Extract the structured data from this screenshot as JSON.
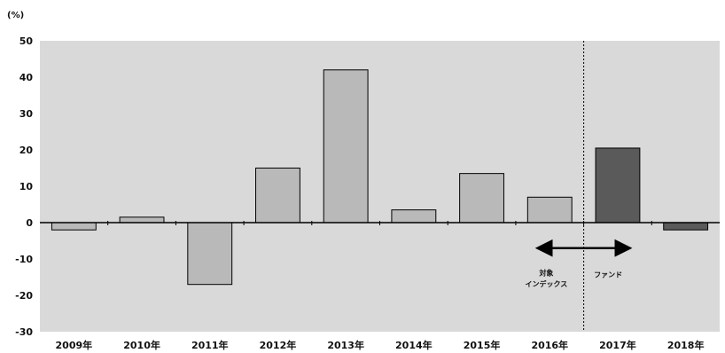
{
  "chart_data": {
    "type": "bar",
    "title": "",
    "xlabel": "",
    "ylabel": "",
    "y_unit": "(%)",
    "ylim": [
      -30,
      50
    ],
    "yticks": [
      50,
      40,
      30,
      20,
      10,
      0,
      -10,
      -20,
      -30
    ],
    "grid": false,
    "categories": [
      "2009年",
      "2010年",
      "2011年",
      "2012年",
      "2013年",
      "2014年",
      "2015年",
      "2016年",
      "2017年",
      "2018年"
    ],
    "values": [
      -2,
      1.5,
      -17,
      15,
      42,
      3.5,
      13.5,
      7,
      20.5,
      -2
    ],
    "bar_groups": [
      "index",
      "index",
      "index",
      "index",
      "index",
      "index",
      "index",
      "index",
      "fund",
      "fund"
    ],
    "colors": {
      "index_bar": "#b9b9b9",
      "fund_bar": "#5a5a5a",
      "plot_bg": "#d9d9d9"
    },
    "divider_between": [
      "2016年",
      "2017年"
    ],
    "annotations": {
      "index_label_line1": "対象",
      "index_label_line2": "インデックス",
      "fund_label": "ファンド"
    }
  }
}
